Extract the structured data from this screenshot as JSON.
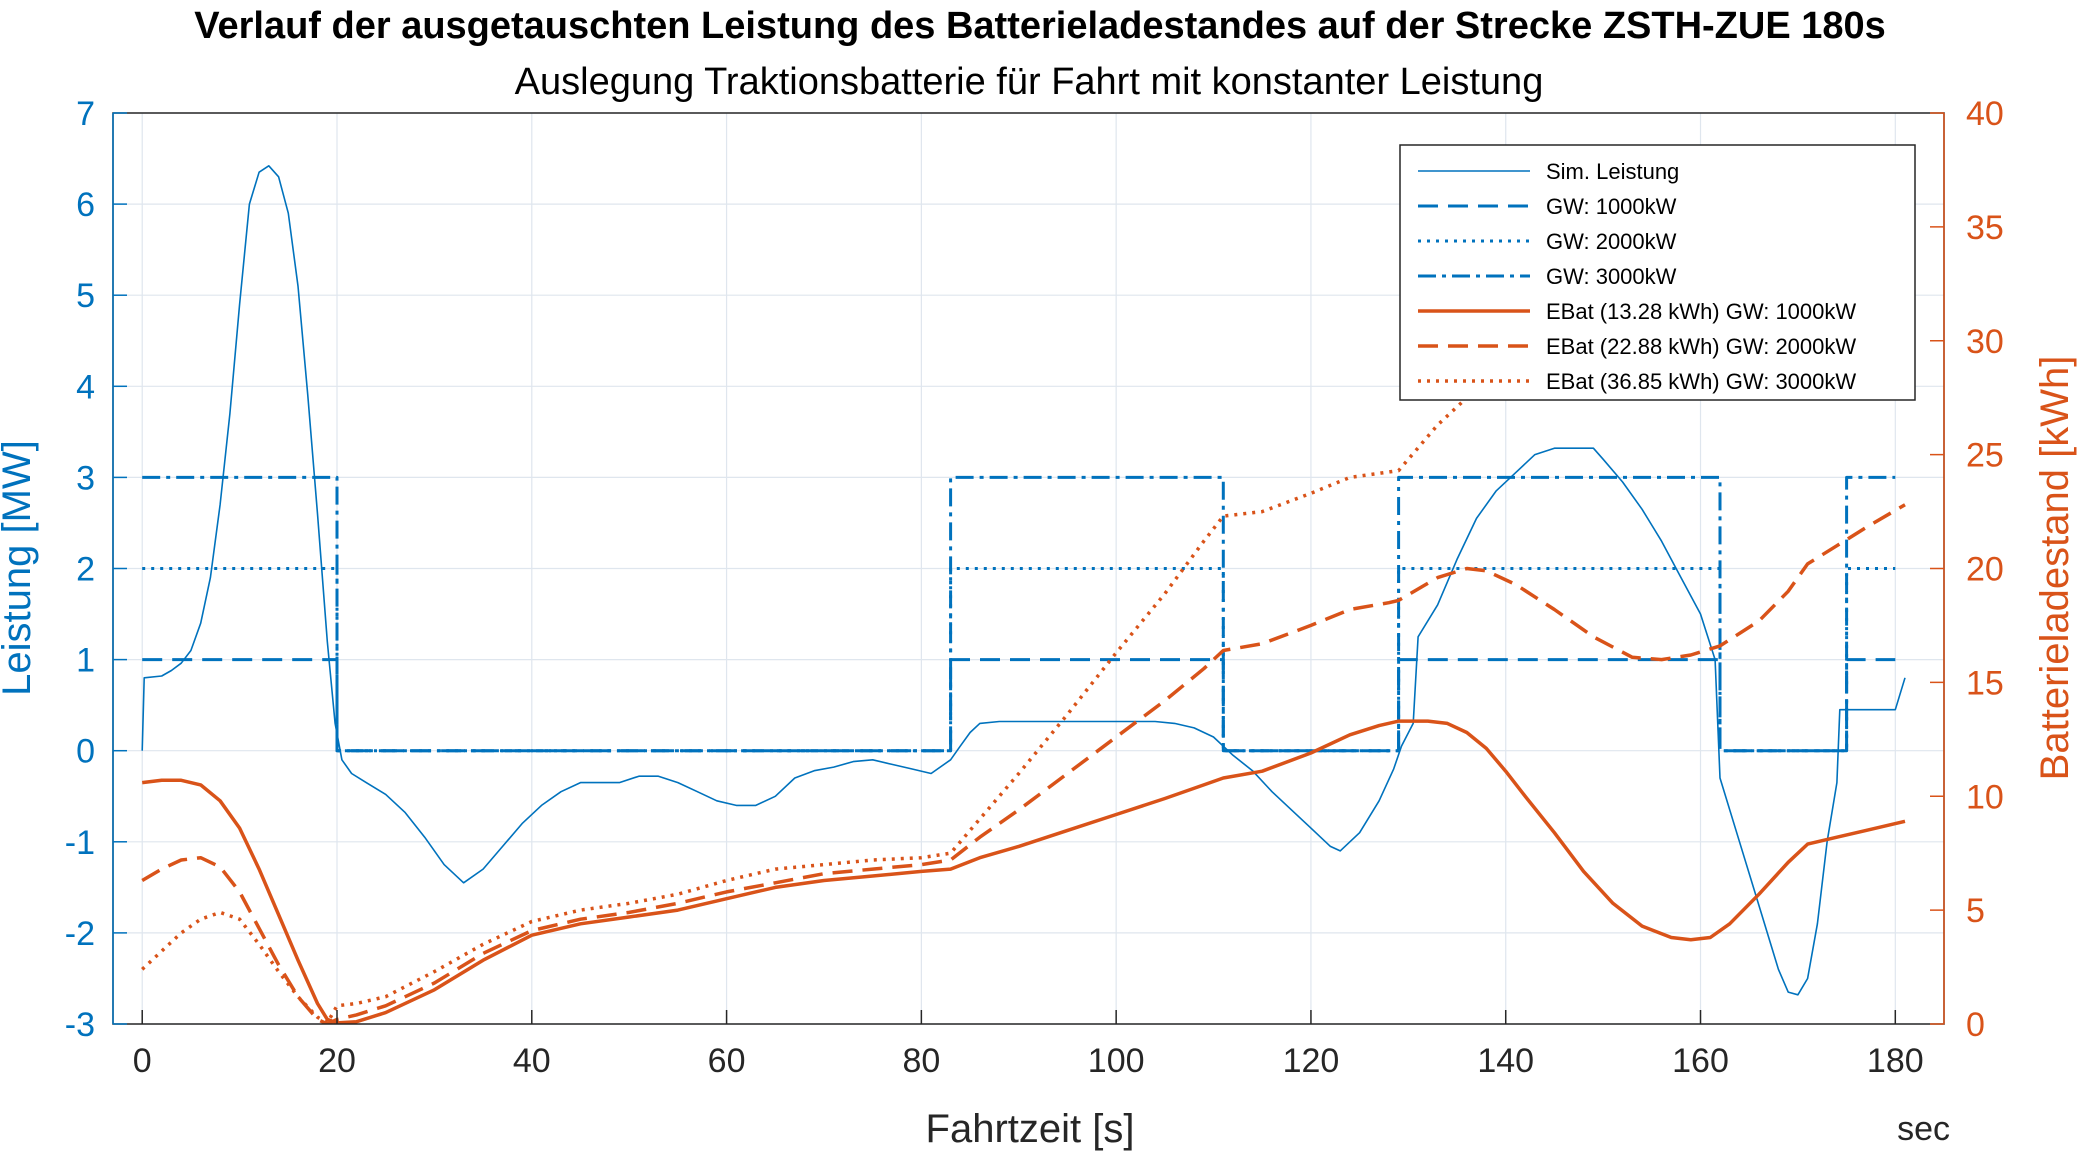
{
  "chart_data": {
    "type": "line",
    "title": "Verlauf der ausgetauschten Leistung des Batterieladestandes auf der Strecke ZSTH-ZUE 180s",
    "subtitle": "Auslegung Traktionsbatterie für Fahrt mit konstanter Leistung",
    "xlabel": "Fahrtzeit [s]",
    "xunit": "sec",
    "ylabel_left": "Leistung [MW]",
    "ylabel_right": "Batterieladestand [kWh]",
    "xlim": [
      -3,
      185
    ],
    "ylim_left": [
      -3,
      7
    ],
    "ylim_right": [
      0,
      40
    ],
    "xticks": [
      0,
      20,
      40,
      60,
      80,
      100,
      120,
      140,
      160,
      180
    ],
    "yticks_left": [
      -3,
      -2,
      -1,
      0,
      1,
      2,
      3,
      4,
      5,
      6,
      7
    ],
    "yticks_right": [
      0,
      5,
      10,
      15,
      20,
      25,
      30,
      35,
      40
    ],
    "grid": true,
    "legend_position": "top-right",
    "colors": {
      "left_axis": "#0072BD",
      "right_axis": "#D95319"
    },
    "series": [
      {
        "name": "Sim. Leistung",
        "axis": "left",
        "color": "#0072BD",
        "style": "solid",
        "width": 1.6,
        "points": [
          [
            0,
            0
          ],
          [
            0.2,
            0.8
          ],
          [
            2,
            0.82
          ],
          [
            3,
            0.88
          ],
          [
            4,
            0.96
          ],
          [
            5,
            1.1
          ],
          [
            6,
            1.4
          ],
          [
            7,
            1.9
          ],
          [
            8,
            2.7
          ],
          [
            9,
            3.7
          ],
          [
            10,
            4.9
          ],
          [
            11,
            6.0
          ],
          [
            12,
            6.35
          ],
          [
            13,
            6.42
          ],
          [
            14,
            6.3
          ],
          [
            15,
            5.9
          ],
          [
            16,
            5.1
          ],
          [
            17,
            3.9
          ],
          [
            18,
            2.6
          ],
          [
            19,
            1.2
          ],
          [
            19.8,
            0.3
          ],
          [
            20.5,
            -0.1
          ],
          [
            21.5,
            -0.25
          ],
          [
            23,
            -0.35
          ],
          [
            25,
            -0.48
          ],
          [
            27,
            -0.68
          ],
          [
            29,
            -0.95
          ],
          [
            31,
            -1.25
          ],
          [
            33,
            -1.45
          ],
          [
            35,
            -1.3
          ],
          [
            37,
            -1.05
          ],
          [
            39,
            -0.8
          ],
          [
            41,
            -0.6
          ],
          [
            43,
            -0.45
          ],
          [
            45,
            -0.35
          ],
          [
            47,
            -0.35
          ],
          [
            49,
            -0.35
          ],
          [
            51,
            -0.28
          ],
          [
            53,
            -0.28
          ],
          [
            55,
            -0.35
          ],
          [
            57,
            -0.45
          ],
          [
            59,
            -0.55
          ],
          [
            61,
            -0.6
          ],
          [
            63,
            -0.6
          ],
          [
            65,
            -0.5
          ],
          [
            67,
            -0.3
          ],
          [
            69,
            -0.22
          ],
          [
            71,
            -0.18
          ],
          [
            73,
            -0.12
          ],
          [
            75,
            -0.1
          ],
          [
            77,
            -0.15
          ],
          [
            79,
            -0.2
          ],
          [
            81,
            -0.25
          ],
          [
            83,
            -0.1
          ],
          [
            84,
            0.05
          ],
          [
            85,
            0.2
          ],
          [
            86,
            0.3
          ],
          [
            88,
            0.32
          ],
          [
            92,
            0.32
          ],
          [
            96,
            0.32
          ],
          [
            100,
            0.32
          ],
          [
            104,
            0.32
          ],
          [
            106,
            0.3
          ],
          [
            108,
            0.25
          ],
          [
            110,
            0.15
          ],
          [
            112,
            -0.05
          ],
          [
            114,
            -0.22
          ],
          [
            116,
            -0.45
          ],
          [
            118,
            -0.65
          ],
          [
            120,
            -0.85
          ],
          [
            122,
            -1.05
          ],
          [
            123,
            -1.1
          ],
          [
            125,
            -0.9
          ],
          [
            127,
            -0.55
          ],
          [
            128.5,
            -0.2
          ],
          [
            129.3,
            0.05
          ],
          [
            130.5,
            0.3
          ],
          [
            131,
            1.25
          ],
          [
            133,
            1.6
          ],
          [
            135,
            2.1
          ],
          [
            137,
            2.55
          ],
          [
            139,
            2.85
          ],
          [
            141,
            3.05
          ],
          [
            143,
            3.25
          ],
          [
            145,
            3.32
          ],
          [
            149,
            3.32
          ],
          [
            150,
            3.2
          ],
          [
            152,
            2.95
          ],
          [
            154,
            2.65
          ],
          [
            156,
            2.3
          ],
          [
            158,
            1.9
          ],
          [
            160,
            1.5
          ],
          [
            161.5,
            1.0
          ],
          [
            162,
            -0.3
          ],
          [
            164,
            -1.0
          ],
          [
            166,
            -1.7
          ],
          [
            168,
            -2.4
          ],
          [
            169,
            -2.65
          ],
          [
            170,
            -2.68
          ],
          [
            171,
            -2.5
          ],
          [
            172,
            -1.9
          ],
          [
            173,
            -1.0
          ],
          [
            174,
            -0.35
          ],
          [
            174.3,
            0.45
          ],
          [
            177,
            0.45
          ],
          [
            180,
            0.45
          ],
          [
            181,
            0.8
          ]
        ]
      },
      {
        "name": "GW: 1000kW",
        "axis": "left",
        "color": "#0072BD",
        "style": "dashed",
        "width": 3,
        "points": [
          [
            0,
            1
          ],
          [
            20,
            1
          ],
          [
            20,
            0
          ],
          [
            83,
            0
          ],
          [
            83,
            1
          ],
          [
            111,
            1
          ],
          [
            111,
            0
          ],
          [
            129,
            0
          ],
          [
            129,
            1
          ],
          [
            162,
            1
          ],
          [
            162,
            0
          ],
          [
            175,
            0
          ],
          [
            175,
            1
          ],
          [
            180,
            1
          ]
        ]
      },
      {
        "name": "GW: 2000kW",
        "axis": "left",
        "color": "#0072BD",
        "style": "dotted",
        "width": 3,
        "points": [
          [
            0,
            2
          ],
          [
            20,
            2
          ],
          [
            20,
            0
          ],
          [
            83,
            0
          ],
          [
            83,
            2
          ],
          [
            111,
            2
          ],
          [
            111,
            0
          ],
          [
            129,
            0
          ],
          [
            129,
            2
          ],
          [
            162,
            2
          ],
          [
            162,
            0
          ],
          [
            175,
            0
          ],
          [
            175,
            2
          ],
          [
            180,
            2
          ]
        ]
      },
      {
        "name": "GW: 3000kW",
        "axis": "left",
        "color": "#0072BD",
        "style": "dashdot",
        "width": 3,
        "points": [
          [
            0,
            3
          ],
          [
            20,
            3
          ],
          [
            20,
            0
          ],
          [
            83,
            0
          ],
          [
            83,
            3
          ],
          [
            111,
            3
          ],
          [
            111,
            0
          ],
          [
            129,
            0
          ],
          [
            129,
            3
          ],
          [
            162,
            3
          ],
          [
            162,
            0
          ],
          [
            175,
            0
          ],
          [
            175,
            3
          ],
          [
            180,
            3
          ]
        ]
      },
      {
        "name": "EBat (13.28 kWh) GW: 1000kW",
        "axis": "right",
        "color": "#D95319",
        "style": "solid",
        "width": 3.5,
        "points": [
          [
            0,
            10.6
          ],
          [
            2,
            10.7
          ],
          [
            4,
            10.7
          ],
          [
            6,
            10.5
          ],
          [
            8,
            9.8
          ],
          [
            10,
            8.6
          ],
          [
            12,
            6.8
          ],
          [
            14,
            4.8
          ],
          [
            16,
            2.8
          ],
          [
            18,
            0.9
          ],
          [
            19,
            0.2
          ],
          [
            20,
            0.05
          ],
          [
            22,
            0.1
          ],
          [
            25,
            0.5
          ],
          [
            30,
            1.5
          ],
          [
            35,
            2.8
          ],
          [
            40,
            3.9
          ],
          [
            45,
            4.4
          ],
          [
            50,
            4.7
          ],
          [
            55,
            5.0
          ],
          [
            60,
            5.5
          ],
          [
            65,
            6.0
          ],
          [
            70,
            6.3
          ],
          [
            75,
            6.5
          ],
          [
            80,
            6.7
          ],
          [
            83,
            6.8
          ],
          [
            86,
            7.3
          ],
          [
            90,
            7.8
          ],
          [
            95,
            8.5
          ],
          [
            100,
            9.2
          ],
          [
            105,
            9.9
          ],
          [
            109,
            10.5
          ],
          [
            111,
            10.8
          ],
          [
            115,
            11.1
          ],
          [
            120,
            11.9
          ],
          [
            124,
            12.7
          ],
          [
            127,
            13.1
          ],
          [
            129,
            13.3
          ],
          [
            131,
            13.3
          ],
          [
            132,
            13.3
          ],
          [
            134,
            13.2
          ],
          [
            136,
            12.8
          ],
          [
            138,
            12.1
          ],
          [
            140,
            11.1
          ],
          [
            142,
            10.0
          ],
          [
            145,
            8.4
          ],
          [
            148,
            6.7
          ],
          [
            151,
            5.3
          ],
          [
            154,
            4.3
          ],
          [
            157,
            3.8
          ],
          [
            159,
            3.7
          ],
          [
            161,
            3.8
          ],
          [
            163,
            4.4
          ],
          [
            166,
            5.7
          ],
          [
            169,
            7.1
          ],
          [
            171,
            7.9
          ],
          [
            174,
            8.2
          ],
          [
            177,
            8.5
          ],
          [
            181,
            8.9
          ]
        ]
      },
      {
        "name": "EBat (22.88 kWh) GW: 2000kW",
        "axis": "right",
        "color": "#D95319",
        "style": "dashed",
        "width": 3.5,
        "points": [
          [
            0,
            6.3
          ],
          [
            2,
            6.8
          ],
          [
            4,
            7.2
          ],
          [
            6,
            7.3
          ],
          [
            8,
            6.9
          ],
          [
            10,
            5.8
          ],
          [
            12,
            4.2
          ],
          [
            14,
            2.6
          ],
          [
            16,
            1.2
          ],
          [
            18,
            0.2
          ],
          [
            19,
            0
          ],
          [
            20,
            0.2
          ],
          [
            22,
            0.4
          ],
          [
            25,
            0.8
          ],
          [
            30,
            1.8
          ],
          [
            35,
            3.1
          ],
          [
            40,
            4.1
          ],
          [
            45,
            4.6
          ],
          [
            50,
            4.9
          ],
          [
            55,
            5.3
          ],
          [
            60,
            5.8
          ],
          [
            65,
            6.2
          ],
          [
            70,
            6.6
          ],
          [
            75,
            6.8
          ],
          [
            80,
            7.0
          ],
          [
            83,
            7.2
          ],
          [
            86,
            8.2
          ],
          [
            90,
            9.4
          ],
          [
            95,
            11.0
          ],
          [
            100,
            12.6
          ],
          [
            105,
            14.2
          ],
          [
            109,
            15.6
          ],
          [
            111,
            16.4
          ],
          [
            115,
            16.7
          ],
          [
            120,
            17.5
          ],
          [
            124,
            18.2
          ],
          [
            128,
            18.5
          ],
          [
            129,
            18.6
          ],
          [
            133,
            19.6
          ],
          [
            136,
            20.0
          ],
          [
            138,
            19.9
          ],
          [
            141,
            19.3
          ],
          [
            145,
            18.2
          ],
          [
            149,
            17.0
          ],
          [
            153,
            16.1
          ],
          [
            156,
            16.0
          ],
          [
            159,
            16.2
          ],
          [
            162,
            16.6
          ],
          [
            166,
            17.7
          ],
          [
            169,
            19.0
          ],
          [
            171,
            20.2
          ],
          [
            174,
            21.0
          ],
          [
            177,
            21.8
          ],
          [
            181,
            22.8
          ]
        ]
      },
      {
        "name": "EBat (36.85 kWh) GW: 3000kW",
        "axis": "right",
        "color": "#D95319",
        "style": "dotted",
        "width": 3.5,
        "points": [
          [
            0,
            2.4
          ],
          [
            2,
            3.2
          ],
          [
            4,
            4.0
          ],
          [
            6,
            4.6
          ],
          [
            8,
            4.9
          ],
          [
            10,
            4.6
          ],
          [
            12,
            3.5
          ],
          [
            14,
            2.3
          ],
          [
            16,
            1.2
          ],
          [
            18,
            0.3
          ],
          [
            19,
            0.05
          ],
          [
            20,
            0.8
          ],
          [
            22,
            0.9
          ],
          [
            25,
            1.2
          ],
          [
            30,
            2.3
          ],
          [
            35,
            3.5
          ],
          [
            40,
            4.5
          ],
          [
            45,
            5.0
          ],
          [
            50,
            5.3
          ],
          [
            55,
            5.7
          ],
          [
            60,
            6.3
          ],
          [
            65,
            6.8
          ],
          [
            70,
            7.0
          ],
          [
            75,
            7.2
          ],
          [
            80,
            7.3
          ],
          [
            83,
            7.5
          ],
          [
            86,
            9.0
          ],
          [
            90,
            11.0
          ],
          [
            95,
            13.6
          ],
          [
            100,
            16.3
          ],
          [
            105,
            18.9
          ],
          [
            109,
            21.2
          ],
          [
            111,
            22.3
          ],
          [
            115,
            22.5
          ],
          [
            120,
            23.3
          ],
          [
            124,
            24.0
          ],
          [
            129,
            24.3
          ],
          [
            133,
            26.3
          ],
          [
            136,
            27.5
          ],
          [
            138,
            28.2
          ]
        ]
      }
    ]
  }
}
